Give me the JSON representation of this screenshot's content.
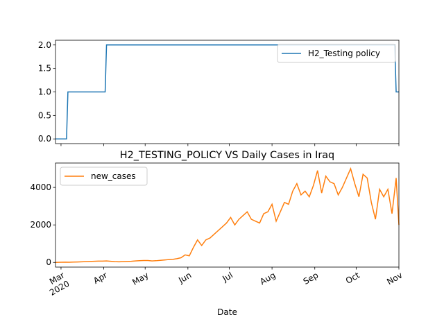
{
  "chart_data": [
    {
      "type": "line",
      "x": [
        "2020-02-26",
        "2020-03-05",
        "2020-03-06",
        "2020-04-02",
        "2020-04-03",
        "2020-10-29",
        "2020-10-30",
        "2020-11-01"
      ],
      "series": [
        {
          "name": "H2_Testing policy",
          "color": "#1f77b4",
          "values": [
            0,
            0,
            1,
            1,
            2,
            2,
            1,
            1
          ]
        }
      ],
      "xlim": [
        "2020-02-26",
        "2020-11-01"
      ],
      "ylim": [
        -0.1,
        2.1
      ],
      "yticks": [
        {
          "value": 0,
          "label": "0.0"
        },
        {
          "value": 0.5,
          "label": "0.5"
        },
        {
          "value": 1,
          "label": "1.0"
        },
        {
          "value": 1.5,
          "label": "1.5"
        },
        {
          "value": 2,
          "label": "2.0"
        }
      ],
      "legend": "upper right"
    },
    {
      "type": "line",
      "title": "H2_TESTING_POLICY VS Daily Cases in Iraq",
      "x_label": "Date",
      "x": [
        "2020-02-26",
        "2020-03-01",
        "2020-03-04",
        "2020-03-07",
        "2020-03-10",
        "2020-03-13",
        "2020-03-16",
        "2020-03-19",
        "2020-03-22",
        "2020-03-25",
        "2020-03-28",
        "2020-03-31",
        "2020-04-03",
        "2020-04-06",
        "2020-04-09",
        "2020-04-12",
        "2020-04-15",
        "2020-04-18",
        "2020-04-21",
        "2020-04-24",
        "2020-04-27",
        "2020-04-30",
        "2020-05-03",
        "2020-05-06",
        "2020-05-09",
        "2020-05-12",
        "2020-05-15",
        "2020-05-18",
        "2020-05-21",
        "2020-05-24",
        "2020-05-27",
        "2020-05-30",
        "2020-06-02",
        "2020-06-05",
        "2020-06-08",
        "2020-06-11",
        "2020-06-14",
        "2020-06-17",
        "2020-06-20",
        "2020-06-23",
        "2020-06-26",
        "2020-06-29",
        "2020-07-02",
        "2020-07-05",
        "2020-07-08",
        "2020-07-11",
        "2020-07-14",
        "2020-07-17",
        "2020-07-20",
        "2020-07-23",
        "2020-07-26",
        "2020-07-29",
        "2020-08-01",
        "2020-08-04",
        "2020-08-07",
        "2020-08-10",
        "2020-08-13",
        "2020-08-16",
        "2020-08-19",
        "2020-08-22",
        "2020-08-25",
        "2020-08-28",
        "2020-08-31",
        "2020-09-03",
        "2020-09-06",
        "2020-09-09",
        "2020-09-12",
        "2020-09-15",
        "2020-09-18",
        "2020-09-21",
        "2020-09-24",
        "2020-09-27",
        "2020-09-30",
        "2020-10-03",
        "2020-10-06",
        "2020-10-09",
        "2020-10-12",
        "2020-10-15",
        "2020-10-18",
        "2020-10-21",
        "2020-10-24",
        "2020-10-27",
        "2020-10-30",
        "2020-11-01"
      ],
      "series": [
        {
          "name": "new_cases",
          "color": "#ff7f0e",
          "values": [
            0,
            10,
            15,
            10,
            20,
            25,
            30,
            40,
            50,
            60,
            70,
            70,
            80,
            60,
            40,
            30,
            40,
            50,
            60,
            80,
            90,
            100,
            100,
            80,
            90,
            110,
            130,
            150,
            160,
            200,
            250,
            400,
            350,
            800,
            1200,
            900,
            1200,
            1300,
            1500,
            1700,
            1900,
            2100,
            2400,
            2000,
            2300,
            2500,
            2700,
            2300,
            2200,
            2100,
            2600,
            2700,
            3100,
            2200,
            2700,
            3200,
            3100,
            3800,
            4200,
            3600,
            3800,
            3500,
            4100,
            4900,
            3700,
            4600,
            4300,
            4200,
            3600,
            4000,
            4500,
            5000,
            4200,
            3500,
            4700,
            4500,
            3200,
            2300,
            3900,
            3500,
            3900,
            2600,
            4500,
            2000
          ]
        }
      ],
      "xlim": [
        "2020-02-26",
        "2020-11-01"
      ],
      "xticks": [
        {
          "value": "2020-03-01",
          "label": "Mar\n2020"
        },
        {
          "value": "2020-04-01",
          "label": "Apr"
        },
        {
          "value": "2020-05-01",
          "label": "May"
        },
        {
          "value": "2020-06-01",
          "label": "Jun"
        },
        {
          "value": "2020-07-01",
          "label": "Jul"
        },
        {
          "value": "2020-08-01",
          "label": "Aug"
        },
        {
          "value": "2020-09-01",
          "label": "Sep"
        },
        {
          "value": "2020-10-01",
          "label": "Oct"
        },
        {
          "value": "2020-11-01",
          "label": "Nov"
        }
      ],
      "ylim": [
        -250,
        5300
      ],
      "yticks": [
        0,
        2000,
        4000
      ],
      "legend": "upper left"
    }
  ]
}
